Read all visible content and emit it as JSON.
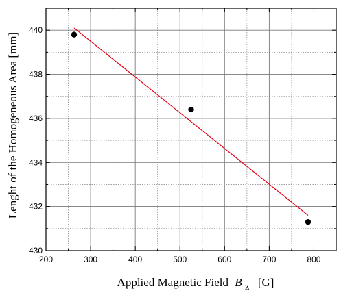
{
  "chart_data": {
    "type": "scatter",
    "title": "",
    "xlabel": "Applied Magnetic Field",
    "xlabel_symbol": "B",
    "xlabel_subscript": "Z",
    "xlabel_unit": "[G]",
    "ylabel": "Lenght of the Homogeneous Area  [mm]",
    "xlim": [
      200,
      850
    ],
    "ylim": [
      430,
      441
    ],
    "x_ticks": [
      200,
      300,
      400,
      500,
      600,
      700,
      800
    ],
    "y_ticks": [
      430,
      432,
      434,
      436,
      438,
      440
    ],
    "grid": true,
    "legend": "none",
    "series": [
      {
        "kind": "points",
        "color": "#000000",
        "points": [
          {
            "x": 263,
            "y": 439.8
          },
          {
            "x": 525,
            "y": 436.4
          },
          {
            "x": 787,
            "y": 431.3
          }
        ]
      },
      {
        "kind": "fit-line",
        "color": "#e3000f",
        "points": [
          {
            "x": 263,
            "y": 440.1
          },
          {
            "x": 787,
            "y": 431.6
          }
        ]
      }
    ]
  }
}
